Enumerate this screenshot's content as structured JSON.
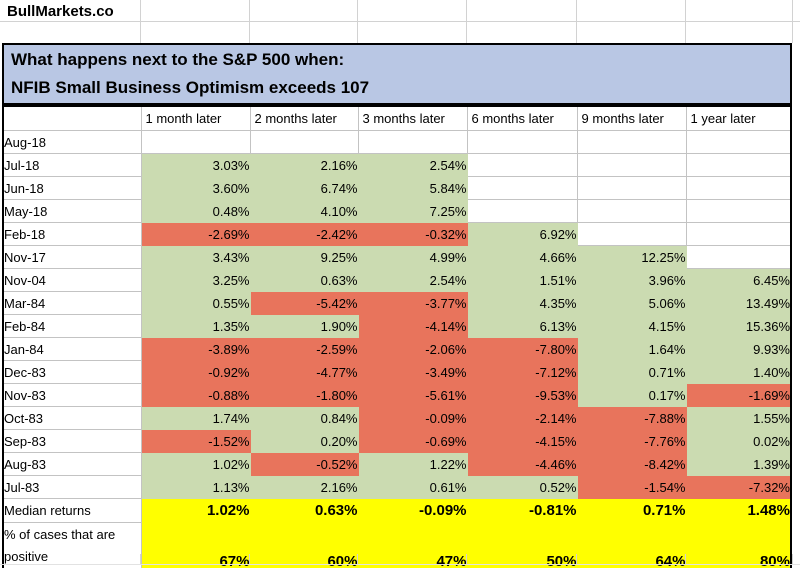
{
  "brand": "BullMarkets.co",
  "chart_data": {
    "type": "table",
    "title_lines": [
      "What happens next to the S&P 500 when:",
      "NFIB Small Business Optimism exceeds 107"
    ],
    "columns": [
      "1 month later",
      "2 months later",
      "3 months later",
      "6 months later",
      "9 months later",
      "1 year later"
    ],
    "rows": [
      {
        "label": "Aug-18",
        "values": [
          "",
          "",
          "",
          "",
          "",
          ""
        ]
      },
      {
        "label": "Jul-18",
        "values": [
          "3.03%",
          "2.16%",
          "2.54%",
          "",
          "",
          ""
        ]
      },
      {
        "label": "Jun-18",
        "values": [
          "3.60%",
          "6.74%",
          "5.84%",
          "",
          "",
          ""
        ]
      },
      {
        "label": "May-18",
        "values": [
          "0.48%",
          "4.10%",
          "7.25%",
          "",
          "",
          ""
        ]
      },
      {
        "label": "Feb-18",
        "values": [
          "-2.69%",
          "-2.42%",
          "-0.32%",
          "6.92%",
          "",
          ""
        ]
      },
      {
        "label": "Nov-17",
        "values": [
          "3.43%",
          "9.25%",
          "4.99%",
          "4.66%",
          "12.25%",
          ""
        ]
      },
      {
        "label": "Nov-04",
        "values": [
          "3.25%",
          "0.63%",
          "2.54%",
          "1.51%",
          "3.96%",
          "6.45%"
        ]
      },
      {
        "label": "Mar-84",
        "values": [
          "0.55%",
          "-5.42%",
          "-3.77%",
          "4.35%",
          "5.06%",
          "13.49%"
        ]
      },
      {
        "label": "Feb-84",
        "values": [
          "1.35%",
          "1.90%",
          "-4.14%",
          "6.13%",
          "4.15%",
          "15.36%"
        ]
      },
      {
        "label": "Jan-84",
        "values": [
          "-3.89%",
          "-2.59%",
          "-2.06%",
          "-7.80%",
          "1.64%",
          "9.93%"
        ]
      },
      {
        "label": "Dec-83",
        "values": [
          "-0.92%",
          "-4.77%",
          "-3.49%",
          "-7.12%",
          "0.71%",
          "1.40%"
        ]
      },
      {
        "label": "Nov-83",
        "values": [
          "-0.88%",
          "-1.80%",
          "-5.61%",
          "-9.53%",
          "0.17%",
          "-1.69%"
        ]
      },
      {
        "label": "Oct-83",
        "values": [
          "1.74%",
          "0.84%",
          "-0.09%",
          "-2.14%",
          "-7.88%",
          "1.55%"
        ]
      },
      {
        "label": "Sep-83",
        "values": [
          "-1.52%",
          "0.20%",
          "-0.69%",
          "-4.15%",
          "-7.76%",
          "0.02%"
        ]
      },
      {
        "label": "Aug-83",
        "values": [
          "1.02%",
          "-0.52%",
          "1.22%",
          "-4.46%",
          "-8.42%",
          "1.39%"
        ]
      },
      {
        "label": "Jul-83",
        "values": [
          "1.13%",
          "2.16%",
          "0.61%",
          "0.52%",
          "-1.54%",
          "-7.32%"
        ]
      }
    ],
    "summary_rows": [
      {
        "label": "Median returns",
        "values": [
          "1.02%",
          "0.63%",
          "-0.09%",
          "-0.81%",
          "0.71%",
          "1.48%"
        ]
      },
      {
        "label": "% of cases that are positive",
        "values": [
          "67%",
          "60%",
          "47%",
          "50%",
          "64%",
          "80%"
        ]
      }
    ]
  },
  "colors": {
    "positive_cell": "#cbdbb1",
    "negative_cell": "#e8745c",
    "summary_cell": "#ffff00",
    "title_bg": "#b9c7e4",
    "gridline": "#c3c3c3",
    "gridline_light": "#d2d2d2",
    "border": "#000000"
  }
}
